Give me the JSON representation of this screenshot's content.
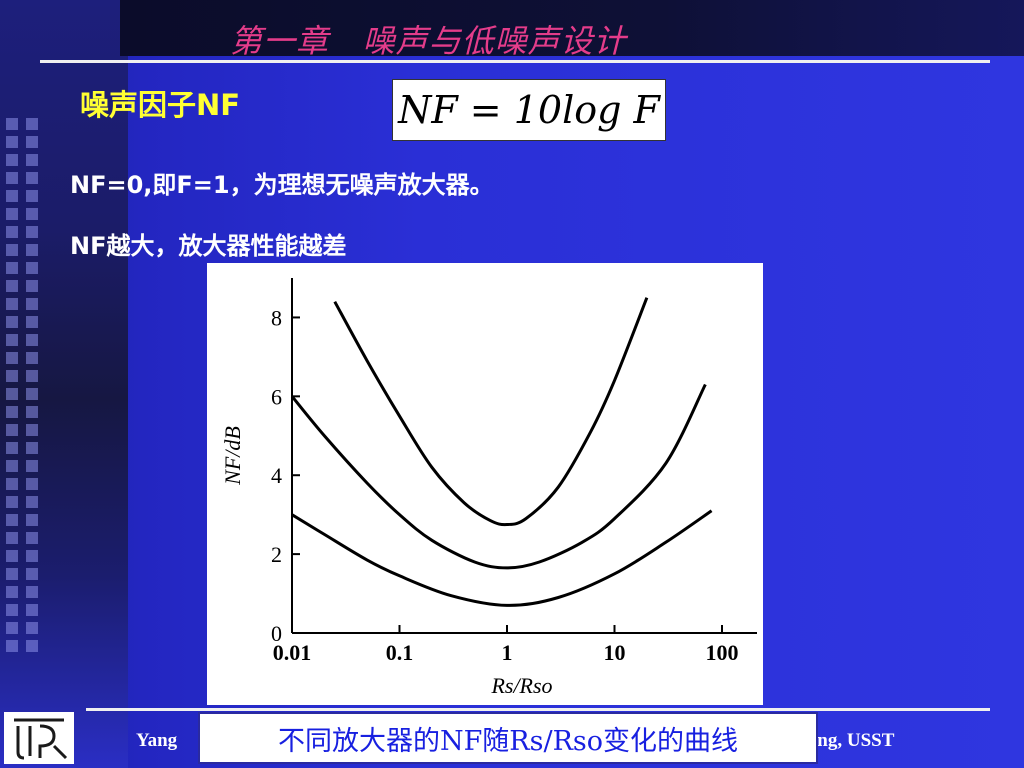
{
  "slide": {
    "title": "第一章   噪声与低噪声设计",
    "subtitle": "噪声因子NF",
    "formula": "NF = 10log F",
    "bullets": [
      "NF=0,即F=1，为理想无噪声放大器。",
      "NF越大，放大器性能越差"
    ],
    "footer_left": "Yang",
    "footer_right": "ing, USST",
    "caption": "不同放大器的NF随Rs/Rso变化的曲线",
    "colors": {
      "title": "#e43c8a",
      "subtitle": "#ffff33",
      "caption": "#1820e0",
      "background": "#2a2fd6"
    }
  },
  "chart_data": {
    "type": "line",
    "xlabel": "Rs/Rso",
    "ylabel": "NF/dB",
    "x_scale": "log",
    "xlim": [
      0.01,
      100
    ],
    "ylim": [
      0,
      9
    ],
    "x_ticks": [
      {
        "value": 0.01,
        "label": "0.01"
      },
      {
        "value": 0.1,
        "label": "0.1"
      },
      {
        "value": 1,
        "label": "1"
      },
      {
        "value": 10,
        "label": "10"
      },
      {
        "value": 100,
        "label": "100"
      }
    ],
    "y_ticks": [
      {
        "value": 0,
        "label": "0"
      },
      {
        "value": 2,
        "label": "2"
      },
      {
        "value": 4,
        "label": "4"
      },
      {
        "value": 6,
        "label": "6"
      },
      {
        "value": 8,
        "label": "8"
      }
    ],
    "series": [
      {
        "points": [
          [
            0.025,
            8.4
          ],
          [
            0.05,
            6.9
          ],
          [
            0.1,
            5.5
          ],
          [
            0.2,
            4.2
          ],
          [
            0.4,
            3.3
          ],
          [
            0.7,
            2.85
          ],
          [
            1,
            2.75
          ],
          [
            1.5,
            2.9
          ],
          [
            3,
            3.7
          ],
          [
            6,
            5.1
          ],
          [
            10,
            6.4
          ],
          [
            20,
            8.5
          ]
        ]
      },
      {
        "points": [
          [
            0.01,
            6.0
          ],
          [
            0.02,
            5.0
          ],
          [
            0.05,
            3.8
          ],
          [
            0.1,
            3.0
          ],
          [
            0.2,
            2.35
          ],
          [
            0.5,
            1.8
          ],
          [
            1,
            1.65
          ],
          [
            2,
            1.8
          ],
          [
            5,
            2.3
          ],
          [
            10,
            2.9
          ],
          [
            30,
            4.3
          ],
          [
            70,
            6.3
          ]
        ]
      },
      {
        "points": [
          [
            0.01,
            3.0
          ],
          [
            0.02,
            2.5
          ],
          [
            0.05,
            1.85
          ],
          [
            0.1,
            1.45
          ],
          [
            0.3,
            0.95
          ],
          [
            1,
            0.7
          ],
          [
            3,
            0.9
          ],
          [
            10,
            1.5
          ],
          [
            30,
            2.3
          ],
          [
            80,
            3.1
          ]
        ]
      }
    ]
  }
}
